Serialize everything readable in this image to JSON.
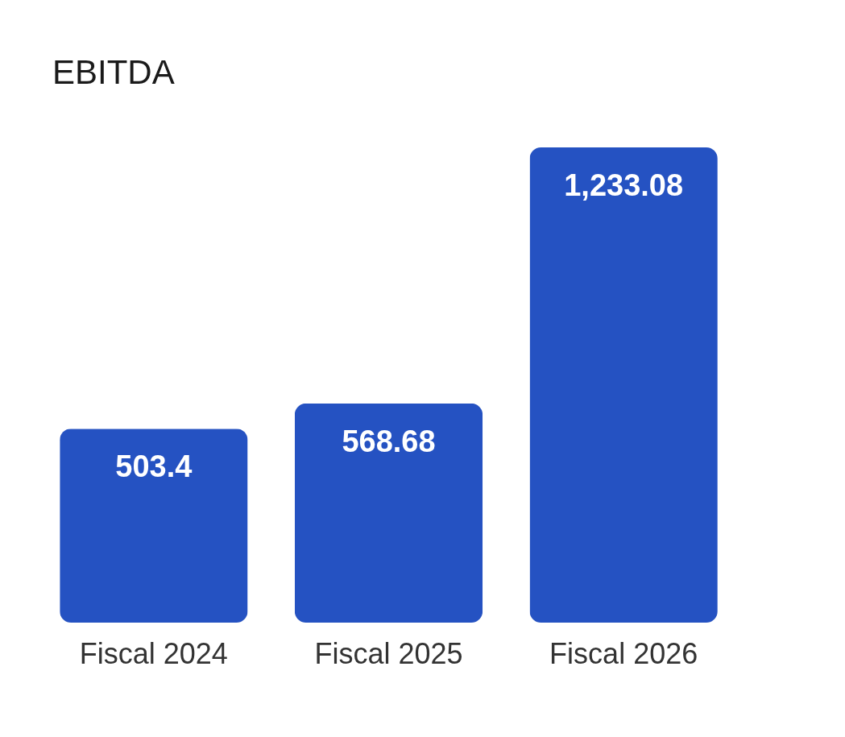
{
  "chart_data": {
    "type": "bar",
    "title": "EBITDA",
    "categories": [
      "Fiscal 2024",
      "Fiscal 2025",
      "Fiscal 2026"
    ],
    "values": [
      503.4,
      568.68,
      1233.08
    ],
    "color": "#2552c2",
    "value_labels": [
      "503.4",
      "568.68",
      "1,233.08"
    ],
    "grid": false
  }
}
